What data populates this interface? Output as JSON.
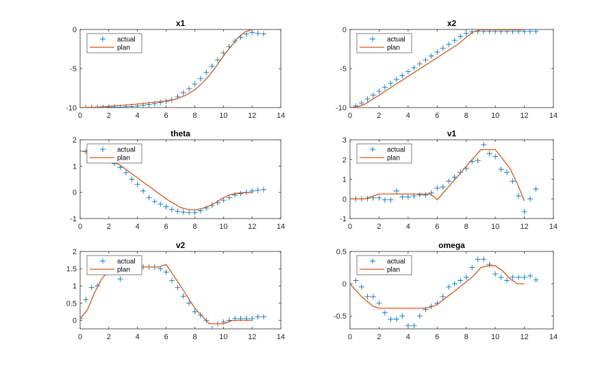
{
  "colors": {
    "actual": "#0072BD",
    "plan": "#D95319",
    "axis": "#262626",
    "background": "#ffffff"
  },
  "chart_data": [
    {
      "type": "line",
      "title": "x1",
      "xlim": [
        0,
        14
      ],
      "ylim": [
        -10,
        0
      ],
      "xticks": [
        "0",
        "2",
        "4",
        "6",
        "8",
        "10",
        "12",
        "14"
      ],
      "yticks": [
        "-10",
        "-5",
        "0"
      ],
      "legend": [
        "actual",
        "plan"
      ],
      "legend_position": "top-left",
      "series": [
        {
          "name": "actual",
          "marker": "+",
          "x": [
            0,
            0.4,
            0.8,
            1.2,
            1.6,
            2.0,
            2.4,
            2.8,
            3.2,
            3.6,
            4.0,
            4.4,
            4.8,
            5.2,
            5.6,
            6.0,
            6.4,
            6.8,
            7.2,
            7.6,
            8.0,
            8.4,
            8.8,
            9.2,
            9.6,
            10.0,
            10.4,
            10.8,
            11.2,
            11.6,
            12.0,
            12.4,
            12.8
          ],
          "y": [
            -10,
            -10,
            -10,
            -10,
            -10,
            -9.95,
            -9.95,
            -9.95,
            -9.9,
            -9.85,
            -9.8,
            -9.7,
            -9.6,
            -9.5,
            -9.35,
            -9.2,
            -9.0,
            -8.6,
            -8.1,
            -7.6,
            -7.0,
            -6.3,
            -5.5,
            -4.7,
            -3.9,
            -3.0,
            -2.2,
            -1.5,
            -1.0,
            -0.6,
            -0.4,
            -0.5,
            -0.55
          ]
        },
        {
          "name": "plan",
          "x": [
            0,
            1,
            2,
            3,
            4,
            5,
            6,
            6.5,
            7,
            7.5,
            8,
            8.5,
            9,
            9.5,
            10,
            10.5,
            11,
            11.5,
            12
          ],
          "y": [
            -10,
            -9.95,
            -9.85,
            -9.7,
            -9.55,
            -9.35,
            -9.15,
            -9.0,
            -8.7,
            -8.3,
            -7.7,
            -6.9,
            -5.9,
            -4.7,
            -3.4,
            -2.2,
            -1.1,
            -0.3,
            0
          ]
        }
      ]
    },
    {
      "type": "line",
      "title": "x2",
      "xlim": [
        0,
        14
      ],
      "ylim": [
        -10,
        0
      ],
      "xticks": [
        "0",
        "2",
        "4",
        "6",
        "8",
        "10",
        "12",
        "14"
      ],
      "yticks": [
        "-10",
        "-5",
        "0"
      ],
      "legend": [
        "actual",
        "plan"
      ],
      "legend_position": "top-left",
      "series": [
        {
          "name": "actual",
          "marker": "+",
          "x": [
            0,
            0.4,
            0.8,
            1.2,
            1.6,
            2.0,
            2.4,
            2.8,
            3.2,
            3.6,
            4.0,
            4.4,
            4.8,
            5.2,
            5.6,
            6.0,
            6.4,
            6.8,
            7.2,
            7.6,
            8.0,
            8.4,
            8.8,
            9.2,
            9.6,
            10.0,
            10.4,
            10.8,
            11.2,
            11.6,
            12.0,
            12.4,
            12.8
          ],
          "y": [
            -10,
            -9.8,
            -9.4,
            -8.9,
            -8.4,
            -7.9,
            -7.4,
            -6.9,
            -6.4,
            -5.9,
            -5.4,
            -4.9,
            -4.4,
            -3.9,
            -3.4,
            -2.9,
            -2.4,
            -1.9,
            -1.4,
            -0.9,
            -0.5,
            -0.3,
            -0.25,
            -0.25,
            -0.25,
            -0.25,
            -0.25,
            -0.25,
            -0.25,
            -0.25,
            -0.25,
            -0.25,
            -0.25
          ]
        },
        {
          "name": "plan",
          "x": [
            0,
            0.5,
            1,
            2,
            3,
            4,
            5,
            6,
            7,
            7.5,
            8,
            8.5,
            9,
            10,
            11,
            12
          ],
          "y": [
            -10,
            -9.9,
            -9.6,
            -8.4,
            -7.2,
            -6.0,
            -4.8,
            -3.6,
            -2.4,
            -1.8,
            -1.0,
            -0.3,
            -0.05,
            -0.05,
            -0.05,
            -0.05
          ]
        }
      ]
    },
    {
      "type": "line",
      "title": "theta",
      "xlim": [
        0,
        14
      ],
      "ylim": [
        -1,
        2
      ],
      "xticks": [
        "0",
        "2",
        "4",
        "6",
        "8",
        "10",
        "12",
        "14"
      ],
      "yticks": [
        "-1",
        "0",
        "1",
        "2"
      ],
      "legend": [
        "actual",
        "plan"
      ],
      "legend_position": "top-left",
      "series": [
        {
          "name": "actual",
          "marker": "+",
          "x": [
            0,
            0.4,
            0.8,
            1.2,
            1.6,
            2.0,
            2.4,
            2.8,
            3.2,
            3.6,
            4.0,
            4.4,
            4.8,
            5.2,
            5.6,
            6.0,
            6.4,
            6.8,
            7.2,
            7.6,
            8.0,
            8.4,
            8.8,
            9.2,
            9.6,
            10.0,
            10.4,
            10.8,
            11.2,
            11.6,
            12.0,
            12.4,
            12.8
          ],
          "y": [
            1.57,
            1.55,
            1.5,
            1.45,
            1.35,
            1.25,
            1.1,
            0.95,
            0.75,
            0.5,
            0.3,
            0.05,
            -0.2,
            -0.35,
            -0.45,
            -0.55,
            -0.65,
            -0.72,
            -0.75,
            -0.77,
            -0.77,
            -0.7,
            -0.6,
            -0.5,
            -0.4,
            -0.3,
            -0.2,
            -0.1,
            -0.05,
            0,
            0.05,
            0.08,
            0.1
          ]
        },
        {
          "name": "plan",
          "x": [
            0,
            0.5,
            1,
            1.5,
            2,
            3,
            4,
            5,
            6,
            7,
            7.5,
            8,
            8.5,
            9,
            9.5,
            10,
            10.5,
            11,
            12
          ],
          "y": [
            1.57,
            1.56,
            1.52,
            1.42,
            1.3,
            0.95,
            0.55,
            0.15,
            -0.25,
            -0.58,
            -0.65,
            -0.67,
            -0.62,
            -0.52,
            -0.38,
            -0.2,
            -0.08,
            -0.03,
            0
          ]
        }
      ]
    },
    {
      "type": "line",
      "title": "v1",
      "xlim": [
        0,
        14
      ],
      "ylim": [
        -1,
        3
      ],
      "xticks": [
        "0",
        "2",
        "4",
        "6",
        "8",
        "10",
        "12",
        "14"
      ],
      "yticks": [
        "-1",
        "0",
        "1",
        "2",
        "3"
      ],
      "legend": [
        "actual",
        "plan"
      ],
      "legend_position": "top-left",
      "series": [
        {
          "name": "actual",
          "marker": "+",
          "x": [
            0,
            0.4,
            0.8,
            1.2,
            1.6,
            2.0,
            2.4,
            2.8,
            3.2,
            3.6,
            4.0,
            4.4,
            4.8,
            5.2,
            5.6,
            6.0,
            6.4,
            6.8,
            7.2,
            7.6,
            8.0,
            8.4,
            8.8,
            9.2,
            9.6,
            10.0,
            10.4,
            10.8,
            11.2,
            11.6,
            12.0,
            12.4,
            12.8
          ],
          "y": [
            0,
            0,
            0,
            0.02,
            0.05,
            0.05,
            -0.05,
            -0.05,
            0.4,
            0.1,
            0.1,
            0.15,
            0.2,
            0.2,
            0.3,
            0.55,
            0.6,
            0.9,
            1.1,
            1.35,
            1.55,
            1.9,
            1.95,
            2.75,
            2.3,
            2.15,
            1.5,
            1.35,
            0.9,
            0.15,
            -0.65,
            0,
            0.5
          ]
        },
        {
          "name": "plan",
          "x": [
            0,
            1,
            2,
            3,
            4,
            5,
            5.5,
            5.8,
            6,
            7,
            8,
            9,
            9.5,
            10,
            11,
            11.5,
            12
          ],
          "y": [
            0,
            0,
            0.25,
            0.25,
            0.25,
            0.25,
            0.25,
            0.1,
            -0.05,
            0.8,
            1.65,
            2.5,
            2.5,
            2.5,
            1.55,
            0.8,
            -0.1
          ]
        }
      ]
    },
    {
      "type": "line",
      "title": "v2",
      "xlim": [
        0,
        14
      ],
      "ylim": [
        -0.25,
        2
      ],
      "xticks": [
        "0",
        "2",
        "4",
        "6",
        "8",
        "10",
        "12",
        "14"
      ],
      "yticks": [
        "0",
        "0.5",
        "1",
        "1.5",
        "2"
      ],
      "legend": [
        "actual",
        "plan"
      ],
      "legend_position": "top-left",
      "series": [
        {
          "name": "actual",
          "marker": "+",
          "x": [
            0,
            0.4,
            0.8,
            1.2,
            1.6,
            2.0,
            2.4,
            2.8,
            3.2,
            3.6,
            4.0,
            4.4,
            4.8,
            5.2,
            5.6,
            6.0,
            6.4,
            6.8,
            7.2,
            7.6,
            8.0,
            8.4,
            8.8,
            9.2,
            9.6,
            10.0,
            10.4,
            10.8,
            11.2,
            11.6,
            12.0,
            12.4,
            12.8
          ],
          "y": [
            0.05,
            0.6,
            0.95,
            1.0,
            1.5,
            1.55,
            1.55,
            1.2,
            1.8,
            1.55,
            1.55,
            1.55,
            1.55,
            1.55,
            1.5,
            1.4,
            1.15,
            0.95,
            0.7,
            0.5,
            0.25,
            0.15,
            0.0,
            -0.25,
            -0.1,
            -0.05,
            0.0,
            0.05,
            0.05,
            0.05,
            0.05,
            0.1,
            0.1
          ]
        },
        {
          "name": "plan",
          "x": [
            0,
            0.2,
            0.5,
            1,
            1.5,
            2,
            3,
            4,
            5,
            5.5,
            5.8,
            6,
            7,
            8,
            9,
            9.5,
            10,
            10.5,
            11,
            12
          ],
          "y": [
            0.05,
            0.15,
            0.3,
            0.8,
            1.2,
            1.45,
            1.5,
            1.55,
            1.55,
            1.55,
            1.6,
            1.62,
            1.0,
            0.35,
            -0.1,
            -0.1,
            -0.1,
            -0.02,
            0,
            0
          ]
        }
      ]
    },
    {
      "type": "line",
      "title": "omega",
      "xlim": [
        0,
        14
      ],
      "ylim": [
        -0.7,
        0.5
      ],
      "xticks": [
        "0",
        "2",
        "4",
        "6",
        "8",
        "10",
        "12",
        "14"
      ],
      "yticks": [
        "-0.5",
        "0",
        "0.5"
      ],
      "legend": [
        "actual",
        "plan"
      ],
      "legend_position": "top-left",
      "series": [
        {
          "name": "actual",
          "marker": "+",
          "x": [
            0,
            0.4,
            0.8,
            1.2,
            1.6,
            2.0,
            2.4,
            2.8,
            3.2,
            3.6,
            4.0,
            4.4,
            4.8,
            5.2,
            5.6,
            6.0,
            6.4,
            6.8,
            7.2,
            7.6,
            8.0,
            8.4,
            8.8,
            9.2,
            9.6,
            10.0,
            10.4,
            10.8,
            11.2,
            11.6,
            12.0,
            12.4,
            12.8
          ],
          "y": [
            0.0,
            0.05,
            -0.05,
            -0.2,
            -0.2,
            -0.3,
            -0.45,
            -0.55,
            -0.55,
            -0.5,
            -0.65,
            -0.65,
            -0.5,
            -0.4,
            -0.35,
            -0.3,
            -0.2,
            -0.05,
            0.0,
            0.05,
            0.1,
            0.25,
            0.38,
            0.38,
            0.3,
            0.15,
            0.1,
            0.05,
            0.1,
            0.1,
            0.1,
            0.12,
            0.06
          ]
        },
        {
          "name": "plan",
          "x": [
            0,
            0.3,
            0.8,
            1.2,
            1.6,
            2,
            3,
            4,
            5,
            5.5,
            6,
            7,
            8,
            8.5,
            9,
            9.5,
            10,
            10.5,
            11,
            11.5,
            12
          ],
          "y": [
            0,
            -0.08,
            -0.2,
            -0.28,
            -0.35,
            -0.38,
            -0.38,
            -0.38,
            -0.38,
            -0.37,
            -0.32,
            -0.15,
            0.03,
            0.12,
            0.25,
            0.28,
            0.28,
            0.2,
            0.08,
            0.0,
            0.0
          ]
        }
      ]
    }
  ]
}
